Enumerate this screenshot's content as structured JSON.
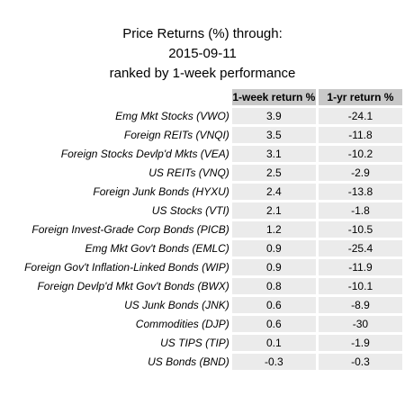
{
  "chart_data": {
    "type": "table",
    "title_lines": [
      "Price Returns (%) through:",
      "2015-09-11",
      "ranked by 1-week performance"
    ],
    "columns": [
      "1-week return %",
      "1-yr return %"
    ],
    "rows": [
      {
        "label": "Emg Mkt Stocks (VWO)",
        "week": "3.9",
        "year": "-24.1"
      },
      {
        "label": "Foreign REITs (VNQI)",
        "week": "3.5",
        "year": "-11.8"
      },
      {
        "label": "Foreign Stocks Devlp'd Mkts (VEA)",
        "week": "3.1",
        "year": "-10.2"
      },
      {
        "label": "US REITs (VNQ)",
        "week": "2.5",
        "year": "-2.9"
      },
      {
        "label": "Foreign Junk Bonds (HYXU)",
        "week": "2.4",
        "year": "-13.8"
      },
      {
        "label": "US Stocks (VTI)",
        "week": "2.1",
        "year": "-1.8"
      },
      {
        "label": "Foreign Invest-Grade Corp Bonds (PICB)",
        "week": "1.2",
        "year": "-10.5"
      },
      {
        "label": "Emg Mkt Gov't Bonds (EMLC)",
        "week": "0.9",
        "year": "-25.4"
      },
      {
        "label": "Foreign Gov't Inflation-Linked Bonds (WIP)",
        "week": "0.9",
        "year": "-11.9"
      },
      {
        "label": "Foreign Devlp'd Mkt Gov't Bonds (BWX)",
        "week": "0.8",
        "year": "-10.1"
      },
      {
        "label": "US Junk Bonds (JNK)",
        "week": "0.6",
        "year": "-8.9"
      },
      {
        "label": "Commodities (DJP)",
        "week": "0.6",
        "year": "-30"
      },
      {
        "label": "US TIPS (TIP)",
        "week": "0.1",
        "year": "-1.9"
      },
      {
        "label": "US Bonds (BND)",
        "week": "-0.3",
        "year": "-0.3"
      }
    ],
    "colors": {
      "header_bg": "#c8c8c8",
      "cell_bg": "#ebebeb"
    }
  }
}
